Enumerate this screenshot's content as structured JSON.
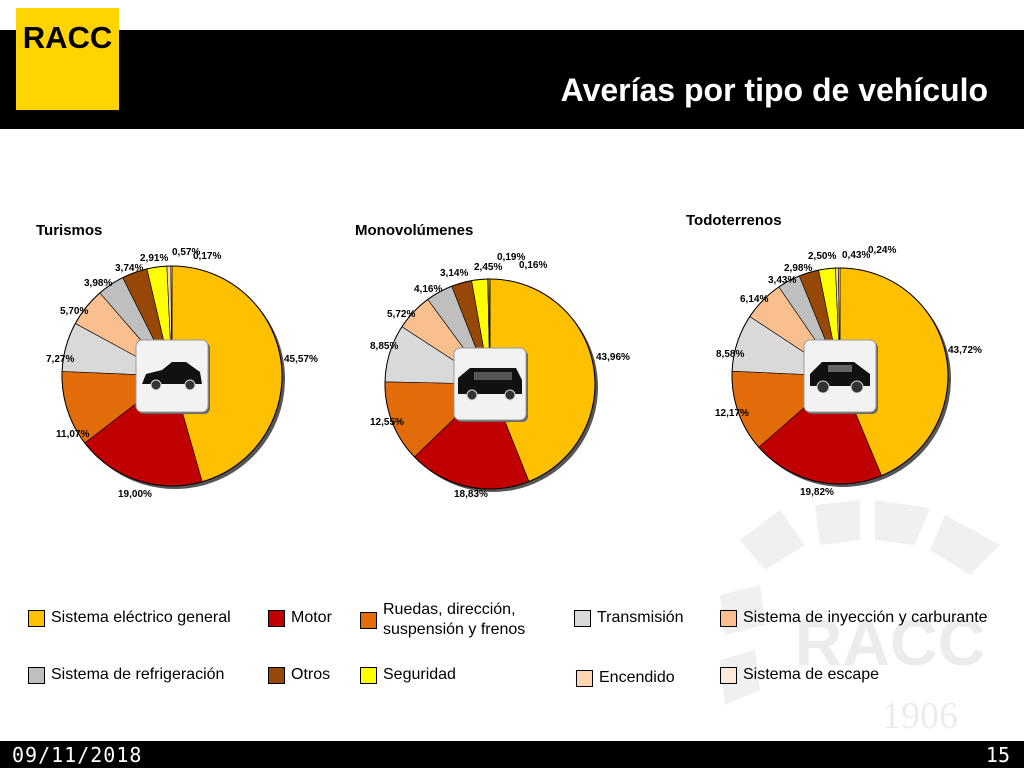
{
  "logo": {
    "text": "RACC"
  },
  "header": {
    "title": "Averías por tipo de vehículo"
  },
  "watermark": {
    "text": "RACC",
    "year": "1906"
  },
  "colors": {
    "Sistema eléctrico general": "#ffc000",
    "Motor": "#c00000",
    "Ruedas, dirección, suspensión y frenos": "#e36c0a",
    "Transmisión": "#d9d9d9",
    "Sistema de inyección y carburante": "#fabf8f",
    "Sistema de refrigeración": "#bfbfbf",
    "Otros": "#974706",
    "Seguridad": "#ffff00",
    "Encendido": "#fcd5b4",
    "Sistema de escape": "#fde9d9"
  },
  "chart_data": [
    {
      "type": "pie",
      "title": "Turismos",
      "icon": "car-icon",
      "categories": [
        "Sistema eléctrico general",
        "Motor",
        "Ruedas, dirección, suspensión y frenos",
        "Transmisión",
        "Sistema de inyección y carburante",
        "Sistema de refrigeración",
        "Otros",
        "Seguridad",
        "Encendido",
        "Sistema de escape"
      ],
      "values": [
        45.57,
        19.0,
        11.07,
        7.27,
        5.7,
        3.98,
        3.74,
        2.91,
        0.57,
        0.17
      ],
      "labels": [
        "45,57%",
        "19,00%",
        "11,07%",
        "7,27%",
        "5,70%",
        "3,98%",
        "3,74%",
        "2,91%",
        "0,57%",
        "0,17%"
      ]
    },
    {
      "type": "pie",
      "title": "Monovolúmenes",
      "icon": "minivan-icon",
      "categories": [
        "Sistema eléctrico general",
        "Motor",
        "Ruedas, dirección, suspensión y frenos",
        "Transmisión",
        "Sistema de inyección y carburante",
        "Sistema de refrigeración",
        "Otros",
        "Seguridad",
        "Encendido",
        "Sistema de escape"
      ],
      "values": [
        43.96,
        18.83,
        12.55,
        8.85,
        5.72,
        4.16,
        3.14,
        2.45,
        0.19,
        0.16
      ],
      "labels": [
        "43,96%",
        "18,83%",
        "12,55%",
        "8,85%",
        "5,72%",
        "4,16%",
        "3,14%",
        "2,45%",
        "0,19%",
        "0,16%"
      ]
    },
    {
      "type": "pie",
      "title": "Todoterrenos",
      "icon": "suv-icon",
      "categories": [
        "Sistema eléctrico general",
        "Motor",
        "Ruedas, dirección, suspensión y frenos",
        "Transmisión",
        "Sistema de inyección y carburante",
        "Sistema de refrigeración",
        "Otros",
        "Seguridad",
        "Encendido",
        "Sistema de escape"
      ],
      "values": [
        43.72,
        19.82,
        12.17,
        8.58,
        6.14,
        3.43,
        2.98,
        2.5,
        0.43,
        0.24
      ],
      "labels": [
        "43,72%",
        "19,82%",
        "12,17%",
        "8,58%",
        "6,14%",
        "3,43%",
        "2,98%",
        "2,50%",
        "0,43%",
        "0,24%"
      ]
    }
  ],
  "legend": [
    {
      "label": "Sistema eléctrico general",
      "color": "#ffc000"
    },
    {
      "label": "Motor",
      "color": "#c00000"
    },
    {
      "label": "Ruedas, dirección, suspensión y frenos",
      "line1": "Ruedas, dirección,",
      "line2": "suspensión y frenos",
      "color": "#e36c0a"
    },
    {
      "label": "Transmisión",
      "color": "#d9d9d9"
    },
    {
      "label": "Sistema de inyección y carburante",
      "color": "#fabf8f"
    },
    {
      "label": "Sistema de refrigeración",
      "color": "#bfbfbf"
    },
    {
      "label": "Otros",
      "color": "#974706"
    },
    {
      "label": "Seguridad",
      "color": "#ffff00"
    },
    {
      "label": "Encendido",
      "color": "#fcd5b4"
    },
    {
      "label": "Sistema de escape",
      "color": "#fde9d9"
    }
  ],
  "footer": {
    "date": "09/11/2018",
    "page": "15"
  }
}
